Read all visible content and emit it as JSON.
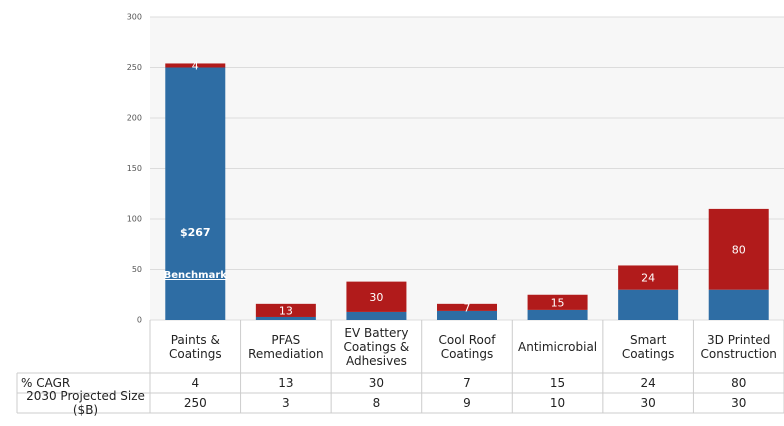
{
  "chart_data": {
    "type": "bar",
    "stacked": true,
    "categories": [
      "Paints & Coatings",
      "PFAS Remediation",
      "EV Battery Coatings & Adhesives",
      "Cool Roof Coatings",
      "Antimicrobial",
      "Smart Coatings",
      "3D Printed Construction"
    ],
    "series": [
      {
        "name": "2030 Projected Size ($B)",
        "color": "#2e6da4",
        "values": [
          250,
          3,
          8,
          9,
          10,
          30,
          30
        ]
      },
      {
        "name": "% CAGR",
        "color": "#b11b1b",
        "values": [
          4,
          13,
          30,
          7,
          15,
          24,
          80
        ]
      }
    ],
    "annotations": [
      "$267",
      "Benchmark"
    ],
    "ylim": [
      0,
      300
    ],
    "yticks": [
      0,
      50,
      100,
      150,
      200,
      250,
      300
    ],
    "grid": true
  }
}
